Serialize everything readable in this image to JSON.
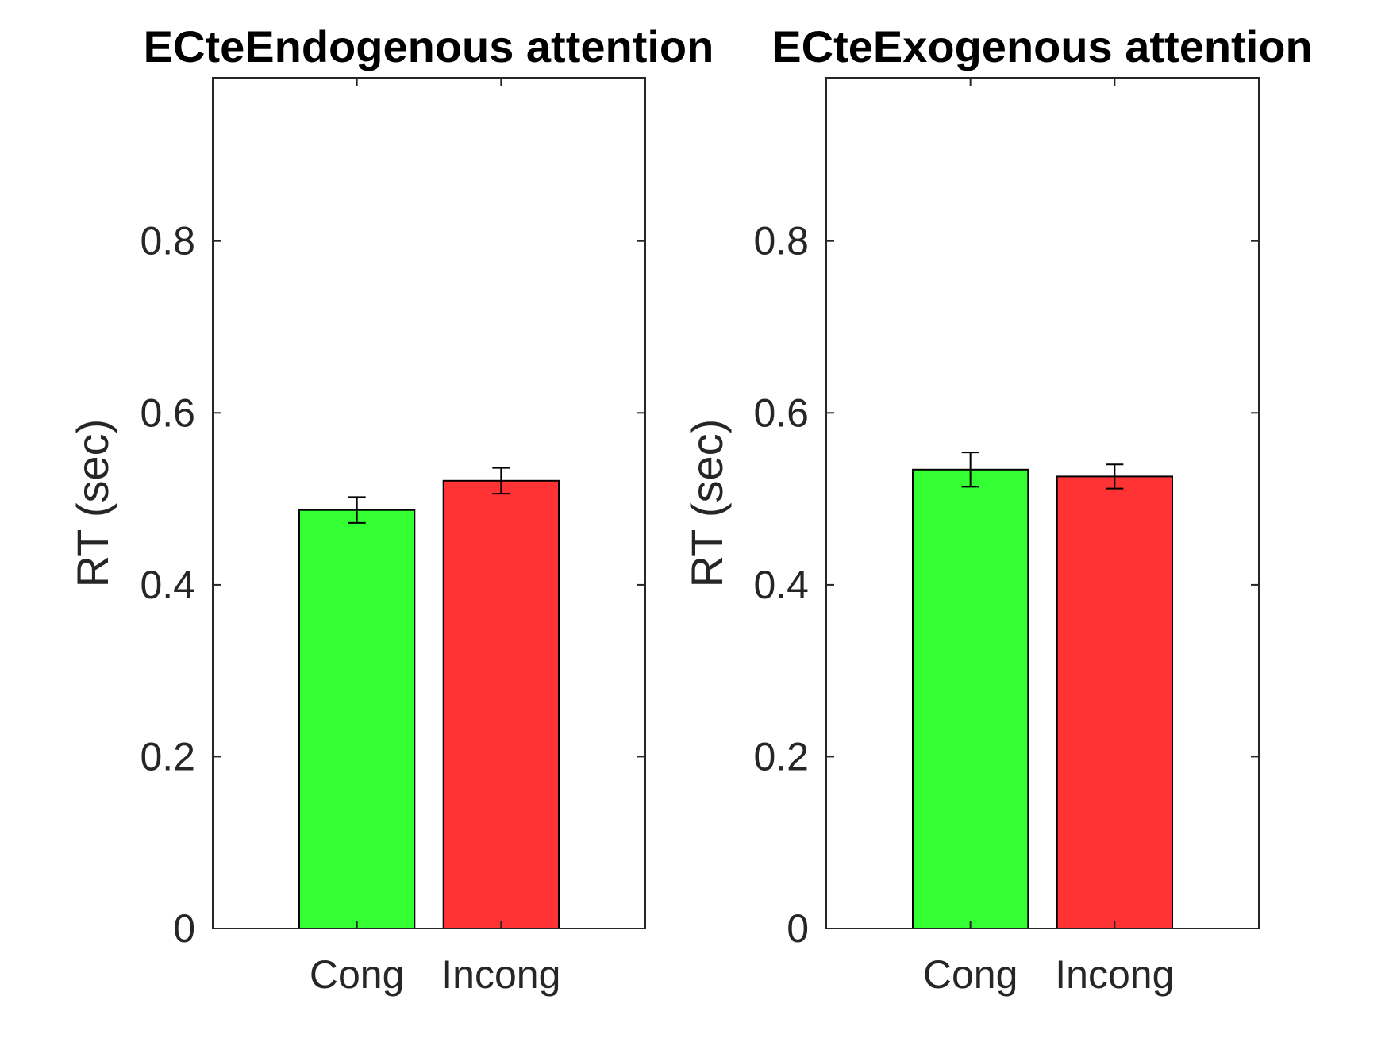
{
  "chart_data": [
    {
      "type": "bar",
      "title": "ECteEndogenous attention",
      "ylabel": "RT (sec)",
      "xlabel": "",
      "categories": [
        "Cong",
        "Incong"
      ],
      "values": [
        0.487,
        0.521
      ],
      "errors": [
        0.015,
        0.015
      ],
      "colors": [
        "#33ff33",
        "#ff3333"
      ],
      "ylim": [
        0,
        0.99
      ],
      "yticks": [
        0,
        0.2,
        0.4,
        0.6,
        0.8
      ],
      "ytick_labels": [
        "0",
        "0.2",
        "0.4",
        "0.6",
        "0.8"
      ],
      "grid": false,
      "legend": "none"
    },
    {
      "type": "bar",
      "title": "ECteExogenous attention",
      "ylabel": "RT (sec)",
      "xlabel": "",
      "categories": [
        "Cong",
        "Incong"
      ],
      "values": [
        0.534,
        0.526
      ],
      "errors": [
        0.02,
        0.014
      ],
      "colors": [
        "#33ff33",
        "#ff3333"
      ],
      "ylim": [
        0,
        0.99
      ],
      "yticks": [
        0,
        0.2,
        0.4,
        0.6,
        0.8
      ],
      "ytick_labels": [
        "0",
        "0.2",
        "0.4",
        "0.6",
        "0.8"
      ],
      "grid": false,
      "legend": "none"
    }
  ]
}
